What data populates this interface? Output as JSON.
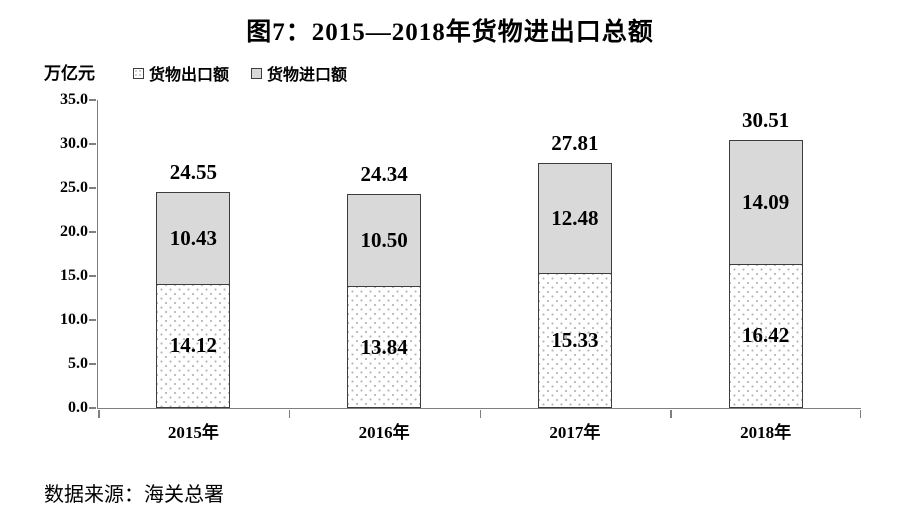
{
  "title": "图7：2015—2018年货物进出口总额",
  "unit_label": "万亿元",
  "legend": {
    "export_label": "货物出口额",
    "import_label": "货物进口额"
  },
  "source": "数据来源：海关总署",
  "colors": {
    "import_fill": "#d9d9d9",
    "export_fill": "#ffffff",
    "export_dots": "#b3b3b3",
    "bar_border": "#3d3d3d",
    "axis": "#7f7f7f",
    "text": "#000000"
  },
  "chart_data": {
    "type": "bar",
    "stacked": true,
    "title": "图7：2015—2018年货物进出口总额",
    "ylabel": "万亿元",
    "xlabel": "",
    "categories": [
      "2015年",
      "2016年",
      "2017年",
      "2018年"
    ],
    "series": [
      {
        "name": "货物出口额",
        "values": [
          14.12,
          13.84,
          15.33,
          16.42
        ],
        "labels": [
          "14.12",
          "13.84",
          "15.33",
          "16.42"
        ],
        "style": "white-dotted-pattern"
      },
      {
        "name": "货物进口额",
        "values": [
          10.43,
          10.5,
          12.48,
          14.09
        ],
        "labels": [
          "10.43",
          "10.50",
          "12.48",
          "14.09"
        ],
        "style": "solid-light-gray"
      }
    ],
    "totals": [
      24.55,
      24.34,
      27.81,
      30.51
    ],
    "totals_labels": [
      "24.55",
      "24.34",
      "27.81",
      "30.51"
    ],
    "ylim": [
      0,
      35
    ],
    "ytick_step": 5,
    "yticks": [
      "0.0",
      "5.0",
      "10.0",
      "15.0",
      "20.0",
      "25.0",
      "30.0",
      "35.0"
    ],
    "grid": false,
    "legend_position": "top-left",
    "data_labels": "inside-segments-and-total-above"
  }
}
